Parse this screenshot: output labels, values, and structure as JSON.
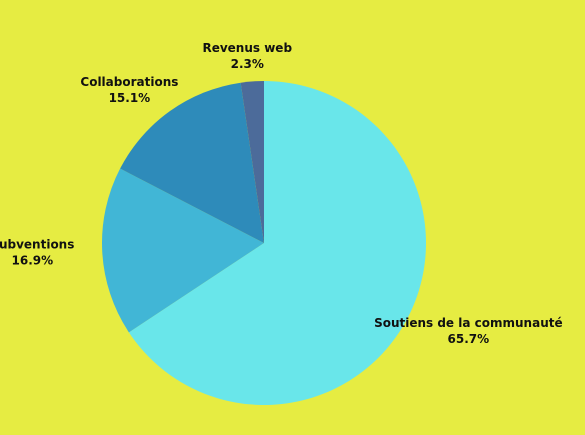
{
  "chart_data": {
    "type": "pie",
    "categories": [
      "Soutiens de la communauté",
      "Subventions",
      "Collaborations",
      "Revenus web"
    ],
    "values": [
      65.7,
      16.9,
      15.1,
      2.3
    ],
    "value_labels": [
      "65.7%",
      "16.9%",
      "15.1%",
      "2.3%"
    ],
    "colors": [
      "#69e6ea",
      "#41b6d6",
      "#2e8bba",
      "#4c6b9a"
    ]
  }
}
